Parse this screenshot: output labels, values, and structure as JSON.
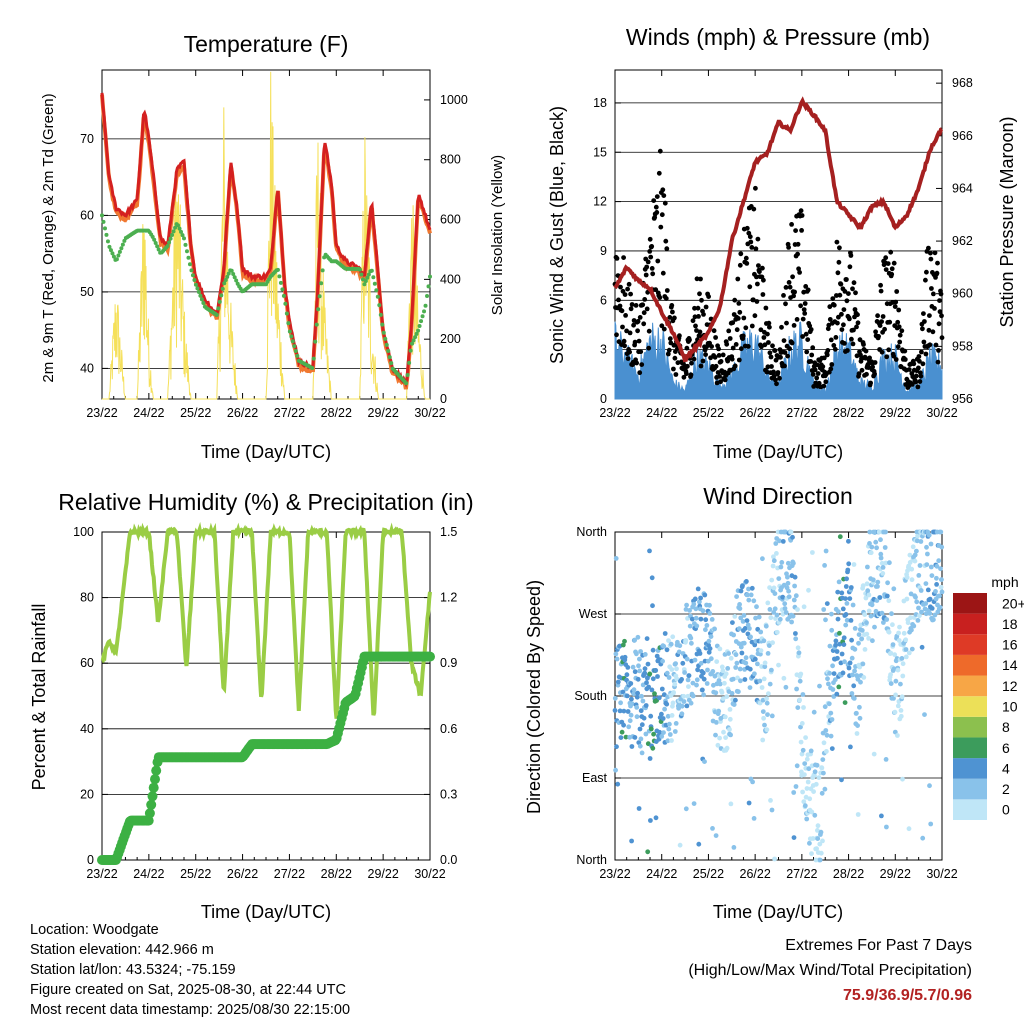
{
  "days": [
    "23/22",
    "24/22",
    "25/22",
    "26/22",
    "27/22",
    "28/22",
    "29/22",
    "30/22"
  ],
  "xlabel": "Time (Day/UTC)",
  "colors": {
    "temp_red": "#d42020",
    "temp_orange": "#f07830",
    "dewpoint_green": "#4caf50",
    "solar_yellow": "#f5e05a",
    "gust_black": "#000000",
    "wind_blue": "#4a90d0",
    "pressure_maroon": "#a52020",
    "rh_lightgreen": "#9acd45",
    "precip_green": "#3cb043"
  },
  "panels": {
    "temperature": {
      "title": "Temperature (F)",
      "ylabel_left": "2m & 9m T (Red, Orange) & 2m Td (Green)",
      "ylabel_right": "Solar Insolation (Yellow)",
      "yticks_left": [
        "40",
        "50",
        "60",
        "70"
      ],
      "yticks_right": [
        "0",
        "200",
        "400",
        "600",
        "800",
        "1000"
      ]
    },
    "winds": {
      "title": "Winds (mph) & Pressure (mb)",
      "ylabel_left": "Sonic Wind & Gust (Blue, Black)",
      "ylabel_right": "Station Pressure (Maroon)",
      "yticks_left": [
        "0",
        "3",
        "6",
        "9",
        "12",
        "15",
        "18"
      ],
      "yticks_right": [
        "956",
        "958",
        "960",
        "962",
        "964",
        "966",
        "968"
      ]
    },
    "humidity": {
      "title": "Relative Humidity (%) & Precipitation (in)",
      "ylabel_left": "Percent & Total Rainfall",
      "yticks_left": [
        "0",
        "20",
        "40",
        "60",
        "80",
        "100"
      ],
      "yticks_right": [
        "0.0",
        "0.3",
        "0.6",
        "0.9",
        "1.2",
        "1.5"
      ]
    },
    "direction": {
      "title": "Wind Direction",
      "ylabel_left": "Direction (Colored By Speed)",
      "yticks_left": [
        "North",
        "East",
        "South",
        "West",
        "North"
      ],
      "colorbar_title": "mph",
      "colorbar_labels": [
        "0",
        "2",
        "4",
        "6",
        "8",
        "10",
        "12",
        "14",
        "16",
        "18",
        "20+"
      ],
      "colorbar_colors": [
        "#bfe6f7",
        "#89c2ea",
        "#4f93d2",
        "#3c9c5c",
        "#8cc04e",
        "#ece058",
        "#f7a646",
        "#ee6a2a",
        "#de3a26",
        "#c8201f",
        "#9c1515"
      ]
    }
  },
  "chart_data": [
    {
      "type": "line",
      "title": "Temperature (F)",
      "xlabel": "Time (Day/UTC)",
      "ylabel": "2m & 9m T (Red, Orange) & 2m Td (Green)",
      "y2label": "Solar Insolation (Yellow)",
      "ylim": [
        36,
        79
      ],
      "y2lim": [
        0,
        1100
      ],
      "x": [
        0,
        0.15,
        0.3,
        0.5,
        0.75,
        0.9,
        1.0,
        1.1,
        1.25,
        1.4,
        1.6,
        1.75,
        1.9,
        2.0,
        2.2,
        2.45,
        2.6,
        2.75,
        2.9,
        3.0,
        3.2,
        3.5,
        3.6,
        3.75,
        3.9,
        4.0,
        4.2,
        4.5,
        4.6,
        4.75,
        4.9,
        5.0,
        5.2,
        5.5,
        5.6,
        5.75,
        5.9,
        6.0,
        6.2,
        6.5,
        6.6,
        6.75,
        6.9,
        7.0
      ],
      "series": [
        {
          "name": "2m T",
          "values": [
            76,
            65,
            61,
            60,
            62,
            74,
            70,
            65,
            57,
            56,
            66,
            67,
            56,
            52,
            49,
            47,
            53,
            67,
            60,
            53,
            52,
            52,
            53,
            64,
            51,
            46,
            41,
            40,
            50,
            70,
            64,
            56,
            54,
            53,
            52,
            62,
            52,
            45,
            40,
            38,
            45,
            63,
            60,
            58
          ]
        },
        {
          "name": "2m Td",
          "values": [
            60,
            56,
            54,
            57,
            58,
            58,
            58,
            57,
            55,
            56,
            59,
            57,
            53,
            51,
            48,
            47,
            51,
            53,
            51,
            50,
            51,
            51,
            52,
            53,
            49,
            45,
            41,
            40,
            47,
            55,
            54,
            54,
            53,
            53,
            51,
            53,
            49,
            45,
            40,
            38,
            43,
            45,
            48,
            52
          ]
        },
        {
          "name": "Solar Insolation",
          "values": [
            0,
            0,
            400,
            0,
            0,
            760,
            200,
            0,
            0,
            0,
            850,
            300,
            0,
            0,
            0,
            0,
            950,
            300,
            0,
            0,
            0,
            0,
            1060,
            400,
            0,
            0,
            0,
            0,
            900,
            300,
            0,
            0,
            0,
            0,
            900,
            300,
            0,
            0,
            0,
            0,
            700,
            300,
            0,
            0
          ]
        }
      ]
    },
    {
      "type": "line",
      "title": "Winds (mph) & Pressure (mb)",
      "xlabel": "Time (Day/UTC)",
      "ylabel": "Sonic Wind & Gust (Blue, Black)",
      "y2label": "Station Pressure (Maroon)",
      "ylim": [
        0,
        20
      ],
      "y2lim": [
        956,
        968.5
      ],
      "x": [
        0,
        0.25,
        0.5,
        0.75,
        1.0,
        1.25,
        1.5,
        1.75,
        2.0,
        2.25,
        2.5,
        2.75,
        3.0,
        3.25,
        3.5,
        3.75,
        4.0,
        4.25,
        4.5,
        4.75,
        5.0,
        5.25,
        5.5,
        5.75,
        6.0,
        6.25,
        6.5,
        6.75,
        7.0
      ],
      "series": [
        {
          "name": "Sonic Wind",
          "values": [
            3.5,
            2.5,
            1.5,
            3.5,
            3.5,
            1,
            0.5,
            2.5,
            2,
            0.8,
            1.5,
            3,
            3.5,
            1.5,
            0.8,
            3,
            3.5,
            1,
            0.5,
            3,
            3,
            1,
            0.8,
            2.5,
            2.5,
            0.5,
            0.8,
            2.5,
            2
          ]
        },
        {
          "name": "Gust",
          "values": [
            9,
            6,
            4,
            9,
            12,
            4,
            2,
            6,
            5,
            2,
            4,
            8,
            10,
            4,
            2,
            9,
            9,
            2,
            2,
            8,
            8,
            3,
            2,
            7,
            7,
            1.5,
            2,
            9,
            5
          ]
        },
        {
          "name": "Station Pressure",
          "values": [
            960.2,
            961,
            960.5,
            960.2,
            959.3,
            958.5,
            957.5,
            958,
            958.5,
            959.5,
            962,
            963.5,
            965,
            965.3,
            966.5,
            966.2,
            967.3,
            966.8,
            966.2,
            963.5,
            963,
            962.5,
            963.3,
            963.5,
            962.5,
            963,
            964,
            965.5,
            966.3
          ]
        }
      ]
    },
    {
      "type": "line",
      "title": "Relative Humidity (%) & Precipitation (in)",
      "xlabel": "Time (Day/UTC)",
      "ylabel": "Percent & Total Rainfall",
      "ylim": [
        0,
        100
      ],
      "y2lim": [
        0,
        1.5
      ],
      "x": [
        0,
        0.15,
        0.3,
        0.6,
        0.8,
        1.0,
        1.2,
        1.4,
        1.6,
        1.8,
        2.0,
        2.2,
        2.4,
        2.6,
        2.8,
        3.0,
        3.2,
        3.4,
        3.6,
        3.8,
        4.0,
        4.2,
        4.4,
        4.6,
        4.8,
        5.0,
        5.2,
        5.4,
        5.6,
        5.8,
        6.0,
        6.2,
        6.4,
        6.6,
        6.8,
        7.0
      ],
      "series": [
        {
          "name": "Relative Humidity",
          "values": [
            60,
            67,
            63,
            100,
            100,
            100,
            72,
            100,
            100,
            58,
            100,
            100,
            100,
            50,
            100,
            100,
            100,
            48,
            100,
            100,
            100,
            45,
            100,
            100,
            100,
            42,
            100,
            100,
            100,
            42,
            100,
            100,
            100,
            60,
            50,
            82
          ]
        },
        {
          "name": "Total Precipitation",
          "values": [
            0,
            0,
            0,
            0.18,
            0.18,
            0.18,
            0.47,
            0.47,
            0.47,
            0.47,
            0.47,
            0.47,
            0.47,
            0.47,
            0.47,
            0.47,
            0.53,
            0.53,
            0.53,
            0.53,
            0.53,
            0.53,
            0.53,
            0.53,
            0.53,
            0.55,
            0.72,
            0.75,
            0.93,
            0.93,
            0.93,
            0.93,
            0.93,
            0.93,
            0.93,
            0.93
          ]
        }
      ]
    },
    {
      "type": "scatter",
      "title": "Wind Direction",
      "xlabel": "Time (Day/UTC)",
      "ylabel": "Direction (Colored By Speed)",
      "ylim": [
        0,
        360
      ],
      "x": [
        0,
        0.2,
        0.4,
        0.6,
        0.8,
        1.0,
        1.2,
        1.4,
        1.6,
        1.8,
        2.0,
        2.2,
        2.4,
        2.6,
        2.8,
        3.0,
        3.2,
        3.4,
        3.6,
        3.8,
        4.0,
        4.2,
        4.4,
        4.6,
        4.8,
        5.0,
        5.2,
        5.4,
        5.6,
        5.8,
        6.0,
        6.2,
        6.4,
        6.6,
        6.8,
        7.0
      ],
      "series": [
        {
          "name": "Direction",
          "values": [
            180,
            180,
            185,
            175,
            170,
            180,
            190,
            200,
            230,
            240,
            230,
            180,
            170,
            240,
            250,
            240,
            180,
            300,
            320,
            320,
            140,
            60,
            40,
            200,
            260,
            270,
            180,
            300,
            320,
            320,
            180,
            250,
            300,
            330,
            320,
            340
          ]
        },
        {
          "name": "Speed",
          "values": [
            3,
            4,
            3,
            3,
            5,
            4,
            1,
            2,
            2,
            3,
            3,
            1,
            1,
            2,
            3,
            3,
            1,
            1,
            2,
            2,
            1,
            0,
            1,
            2,
            4,
            4,
            1,
            1,
            2,
            2,
            1,
            0,
            1,
            2,
            3,
            2
          ]
        }
      ]
    }
  ],
  "info": {
    "location": "Location: Woodgate",
    "elevation": "Station elevation: 442.966 m",
    "latlon": "Station lat/lon: 43.5324; -75.159",
    "created": "Figure created on Sat, 2025-08-30, at 22:44 UTC",
    "recent": "Most recent data timestamp: 2025/08/30 22:15:00"
  },
  "extremes": {
    "line1": "Extremes For Past 7 Days",
    "line2": "(High/Low/Max Wind/Total Precipitation)",
    "values": "75.9/36.9/5.7/0.96"
  }
}
